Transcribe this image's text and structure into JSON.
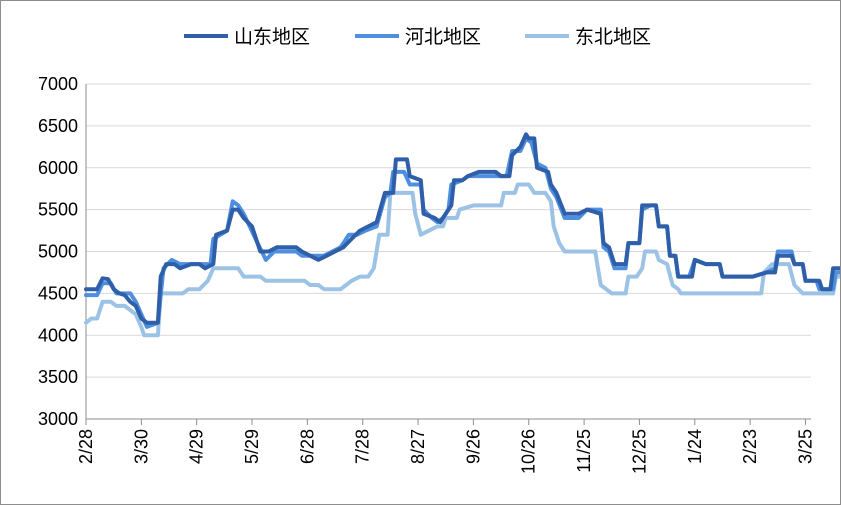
{
  "chart_data": {
    "type": "line",
    "title": "",
    "xlabel": "",
    "ylabel": "",
    "ylim": [
      3000,
      7000
    ],
    "yticks": [
      3000,
      3500,
      4000,
      4500,
      5000,
      5500,
      6000,
      6500,
      7000
    ],
    "grid": "horizontal",
    "legend": "top-center",
    "x_tick_labels": [
      "2/28",
      "3/30",
      "4/29",
      "5/29",
      "6/28",
      "7/28",
      "8/27",
      "9/26",
      "10/26",
      "11/25",
      "12/25",
      "1/24",
      "2/23",
      "3/25"
    ],
    "x_range": [
      0,
      13.1
    ],
    "series": [
      {
        "name": "山东地区",
        "color": "#2e5fa8",
        "points": [
          [
            0,
            4550
          ],
          [
            0.2,
            4550
          ],
          [
            0.3,
            4680
          ],
          [
            0.4,
            4670
          ],
          [
            0.5,
            4550
          ],
          [
            0.6,
            4500
          ],
          [
            0.7,
            4480
          ],
          [
            0.8,
            4400
          ],
          [
            0.9,
            4350
          ],
          [
            1.0,
            4200
          ],
          [
            1.1,
            4150
          ],
          [
            1.3,
            4150
          ],
          [
            1.35,
            4700
          ],
          [
            1.45,
            4850
          ],
          [
            1.6,
            4850
          ],
          [
            1.7,
            4800
          ],
          [
            1.9,
            4850
          ],
          [
            2.05,
            4850
          ],
          [
            2.15,
            4800
          ],
          [
            2.3,
            4850
          ],
          [
            2.35,
            5200
          ],
          [
            2.55,
            5250
          ],
          [
            2.65,
            5500
          ],
          [
            2.75,
            5500
          ],
          [
            2.85,
            5400
          ],
          [
            3.0,
            5300
          ],
          [
            3.15,
            5000
          ],
          [
            3.3,
            5000
          ],
          [
            3.45,
            5050
          ],
          [
            3.8,
            5050
          ],
          [
            3.9,
            5000
          ],
          [
            4.05,
            4950
          ],
          [
            4.2,
            4900
          ],
          [
            4.35,
            4950
          ],
          [
            4.5,
            5000
          ],
          [
            4.65,
            5050
          ],
          [
            4.8,
            5150
          ],
          [
            4.95,
            5250
          ],
          [
            5.1,
            5300
          ],
          [
            5.25,
            5350
          ],
          [
            5.4,
            5700
          ],
          [
            5.55,
            5700
          ],
          [
            5.6,
            6100
          ],
          [
            5.8,
            6100
          ],
          [
            5.85,
            5900
          ],
          [
            6.05,
            5850
          ],
          [
            6.1,
            5450
          ],
          [
            6.3,
            5400
          ],
          [
            6.4,
            5350
          ],
          [
            6.5,
            5450
          ],
          [
            6.6,
            5550
          ],
          [
            6.65,
            5850
          ],
          [
            6.8,
            5850
          ],
          [
            6.9,
            5900
          ],
          [
            7.1,
            5950
          ],
          [
            7.4,
            5950
          ],
          [
            7.5,
            5900
          ],
          [
            7.65,
            5900
          ],
          [
            7.7,
            6150
          ],
          [
            7.85,
            6250
          ],
          [
            7.95,
            6400
          ],
          [
            8.0,
            6350
          ],
          [
            8.1,
            6350
          ],
          [
            8.15,
            6000
          ],
          [
            8.35,
            5950
          ],
          [
            8.4,
            5800
          ],
          [
            8.5,
            5700
          ],
          [
            8.65,
            5450
          ],
          [
            8.9,
            5450
          ],
          [
            9.05,
            5500
          ],
          [
            9.3,
            5450
          ],
          [
            9.35,
            5100
          ],
          [
            9.45,
            5050
          ],
          [
            9.55,
            4850
          ],
          [
            9.75,
            4850
          ],
          [
            9.8,
            5100
          ],
          [
            10.0,
            5100
          ],
          [
            10.05,
            5550
          ],
          [
            10.3,
            5550
          ],
          [
            10.35,
            5300
          ],
          [
            10.5,
            5300
          ],
          [
            10.55,
            4950
          ],
          [
            10.65,
            4950
          ],
          [
            10.7,
            4700
          ],
          [
            10.95,
            4700
          ],
          [
            11.0,
            4900
          ],
          [
            11.2,
            4850
          ],
          [
            11.45,
            4850
          ],
          [
            11.5,
            4700
          ],
          [
            11.85,
            4700
          ],
          [
            12.05,
            4700
          ],
          [
            12.3,
            4750
          ],
          [
            12.45,
            4750
          ],
          [
            12.5,
            4950
          ],
          [
            12.75,
            4950
          ],
          [
            12.8,
            4850
          ],
          [
            12.95,
            4850
          ],
          [
            13.0,
            4650
          ],
          [
            13.25,
            4650
          ],
          [
            13.3,
            4550
          ],
          [
            13.45,
            4550
          ],
          [
            13.5,
            4800
          ],
          [
            13.7,
            4800
          ],
          [
            13.75,
            4600
          ]
        ]
      },
      {
        "name": "河北地区",
        "color": "#4f8fe0",
        "points": [
          [
            0,
            4480
          ],
          [
            0.2,
            4480
          ],
          [
            0.3,
            4620
          ],
          [
            0.45,
            4620
          ],
          [
            0.55,
            4500
          ],
          [
            0.8,
            4500
          ],
          [
            0.9,
            4400
          ],
          [
            1.0,
            4250
          ],
          [
            1.1,
            4100
          ],
          [
            1.3,
            4150
          ],
          [
            1.4,
            4800
          ],
          [
            1.55,
            4900
          ],
          [
            1.7,
            4850
          ],
          [
            2.1,
            4850
          ],
          [
            2.25,
            4850
          ],
          [
            2.3,
            5150
          ],
          [
            2.55,
            5250
          ],
          [
            2.65,
            5600
          ],
          [
            2.75,
            5550
          ],
          [
            2.85,
            5450
          ],
          [
            3.1,
            5100
          ],
          [
            3.25,
            4900
          ],
          [
            3.4,
            5000
          ],
          [
            3.8,
            5000
          ],
          [
            3.9,
            4950
          ],
          [
            4.3,
            4950
          ],
          [
            4.45,
            5000
          ],
          [
            4.6,
            5050
          ],
          [
            4.75,
            5200
          ],
          [
            4.9,
            5200
          ],
          [
            5.05,
            5250
          ],
          [
            5.25,
            5300
          ],
          [
            5.4,
            5650
          ],
          [
            5.5,
            5700
          ],
          [
            5.55,
            5950
          ],
          [
            5.75,
            5950
          ],
          [
            5.85,
            5800
          ],
          [
            6.05,
            5800
          ],
          [
            6.1,
            5500
          ],
          [
            6.25,
            5400
          ],
          [
            6.35,
            5350
          ],
          [
            6.45,
            5400
          ],
          [
            6.55,
            5500
          ],
          [
            6.6,
            5800
          ],
          [
            6.8,
            5850
          ],
          [
            6.9,
            5900
          ],
          [
            7.4,
            5900
          ],
          [
            7.5,
            5900
          ],
          [
            7.6,
            5900
          ],
          [
            7.7,
            6200
          ],
          [
            7.85,
            6200
          ],
          [
            7.95,
            6350
          ],
          [
            8.05,
            6300
          ],
          [
            8.15,
            6050
          ],
          [
            8.3,
            6000
          ],
          [
            8.4,
            5750
          ],
          [
            8.5,
            5650
          ],
          [
            8.65,
            5400
          ],
          [
            8.9,
            5400
          ],
          [
            9.05,
            5500
          ],
          [
            9.3,
            5500
          ],
          [
            9.35,
            5050
          ],
          [
            9.45,
            5000
          ],
          [
            9.55,
            4800
          ],
          [
            9.75,
            4800
          ],
          [
            9.8,
            5100
          ],
          [
            10.0,
            5100
          ],
          [
            10.05,
            5500
          ],
          [
            10.2,
            5550
          ],
          [
            10.3,
            5550
          ],
          [
            10.35,
            5300
          ],
          [
            10.5,
            5300
          ],
          [
            10.55,
            4950
          ],
          [
            10.65,
            4950
          ],
          [
            10.7,
            4700
          ],
          [
            10.9,
            4700
          ],
          [
            11.0,
            4900
          ],
          [
            11.2,
            4850
          ],
          [
            11.45,
            4850
          ],
          [
            11.5,
            4700
          ],
          [
            11.85,
            4700
          ],
          [
            12.05,
            4700
          ],
          [
            12.3,
            4750
          ],
          [
            12.45,
            4800
          ],
          [
            12.5,
            5000
          ],
          [
            12.75,
            5000
          ],
          [
            12.8,
            4850
          ],
          [
            12.95,
            4850
          ],
          [
            13.0,
            4650
          ],
          [
            13.2,
            4650
          ],
          [
            13.25,
            4550
          ],
          [
            13.5,
            4550
          ],
          [
            13.55,
            4750
          ],
          [
            13.7,
            4750
          ],
          [
            13.75,
            4550
          ]
        ]
      },
      {
        "name": "东北地区",
        "color": "#9cc3e6",
        "points": [
          [
            0,
            4150
          ],
          [
            0.1,
            4200
          ],
          [
            0.2,
            4200
          ],
          [
            0.3,
            4400
          ],
          [
            0.45,
            4400
          ],
          [
            0.55,
            4350
          ],
          [
            0.7,
            4350
          ],
          [
            0.8,
            4300
          ],
          [
            0.9,
            4250
          ],
          [
            1.0,
            4100
          ],
          [
            1.05,
            4000
          ],
          [
            1.3,
            4000
          ],
          [
            1.35,
            4500
          ],
          [
            1.75,
            4500
          ],
          [
            1.85,
            4550
          ],
          [
            2.05,
            4550
          ],
          [
            2.2,
            4650
          ],
          [
            2.3,
            4800
          ],
          [
            2.65,
            4800
          ],
          [
            2.75,
            4800
          ],
          [
            2.85,
            4700
          ],
          [
            3.15,
            4700
          ],
          [
            3.25,
            4650
          ],
          [
            3.95,
            4650
          ],
          [
            4.05,
            4600
          ],
          [
            4.2,
            4600
          ],
          [
            4.3,
            4550
          ],
          [
            4.6,
            4550
          ],
          [
            4.7,
            4600
          ],
          [
            4.8,
            4650
          ],
          [
            4.95,
            4700
          ],
          [
            5.1,
            4700
          ],
          [
            5.2,
            4800
          ],
          [
            5.3,
            5200
          ],
          [
            5.45,
            5200
          ],
          [
            5.5,
            5700
          ],
          [
            5.9,
            5700
          ],
          [
            5.95,
            5450
          ],
          [
            6.05,
            5200
          ],
          [
            6.2,
            5250
          ],
          [
            6.35,
            5300
          ],
          [
            6.45,
            5300
          ],
          [
            6.5,
            5400
          ],
          [
            6.7,
            5400
          ],
          [
            6.75,
            5500
          ],
          [
            7.0,
            5550
          ],
          [
            7.5,
            5550
          ],
          [
            7.55,
            5700
          ],
          [
            7.75,
            5700
          ],
          [
            7.8,
            5800
          ],
          [
            8.0,
            5800
          ],
          [
            8.1,
            5700
          ],
          [
            8.3,
            5700
          ],
          [
            8.4,
            5600
          ],
          [
            8.45,
            5300
          ],
          [
            8.55,
            5100
          ],
          [
            8.65,
            5000
          ],
          [
            8.85,
            5000
          ],
          [
            9.05,
            5000
          ],
          [
            9.2,
            5000
          ],
          [
            9.3,
            4600
          ],
          [
            9.4,
            4550
          ],
          [
            9.5,
            4500
          ],
          [
            9.75,
            4500
          ],
          [
            9.8,
            4700
          ],
          [
            9.95,
            4700
          ],
          [
            10.05,
            4800
          ],
          [
            10.1,
            5000
          ],
          [
            10.3,
            5000
          ],
          [
            10.35,
            4900
          ],
          [
            10.5,
            4850
          ],
          [
            10.6,
            4600
          ],
          [
            10.7,
            4550
          ],
          [
            10.75,
            4500
          ],
          [
            11.0,
            4500
          ],
          [
            12.2,
            4500
          ],
          [
            12.25,
            4750
          ],
          [
            12.4,
            4850
          ],
          [
            12.55,
            4850
          ],
          [
            12.7,
            4850
          ],
          [
            12.8,
            4600
          ],
          [
            12.95,
            4500
          ],
          [
            13.1,
            4500
          ],
          [
            13.25,
            4500
          ],
          [
            13.5,
            4500
          ],
          [
            13.55,
            4700
          ],
          [
            13.7,
            4700
          ],
          [
            13.75,
            4500
          ]
        ]
      }
    ]
  }
}
